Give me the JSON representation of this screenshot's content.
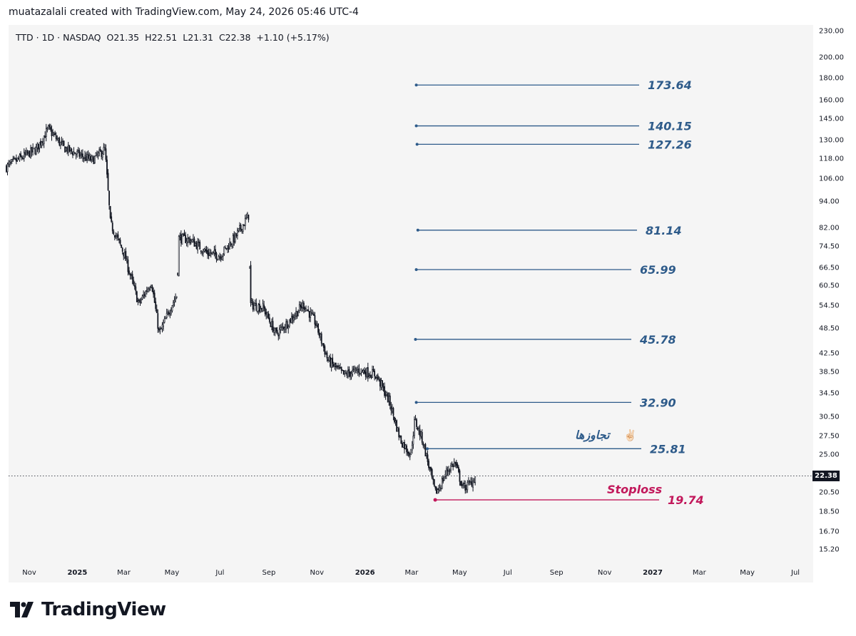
{
  "header": {
    "attribution": "muatazalali created with TradingView.com, May 24, 2026 05:46 UTC-4"
  },
  "legend": {
    "symbol": "TTD · 1D · NASDAQ",
    "open_label": "O",
    "open": "21.35",
    "high_label": "H",
    "high": "22.51",
    "low_label": "L",
    "low": "21.31",
    "close_label": "C",
    "close": "22.38",
    "change": "+1.10 (+5.17%)"
  },
  "current_price_badge": "22.38",
  "footer": {
    "brand": "TradingView"
  },
  "colors": {
    "level": "#2e5b8a",
    "stoploss": "#c2185b",
    "candle": "#131722",
    "panel": "#f5f5f5"
  },
  "chart_data": {
    "type": "candlestick",
    "scale": "log",
    "ylim": [
      14.5,
      232
    ],
    "y_ticks": [
      "230.00",
      "200.00",
      "180.00",
      "160.00",
      "145.00",
      "130.00",
      "118.00",
      "106.00",
      "94.00",
      "82.00",
      "74.50",
      "66.50",
      "60.50",
      "54.50",
      "48.50",
      "42.50",
      "38.50",
      "34.50",
      "30.50",
      "27.50",
      "25.00",
      "20.50",
      "18.50",
      "16.70",
      "15.20"
    ],
    "x_ticks": [
      {
        "label": "Nov",
        "bold": false
      },
      {
        "label": "2025",
        "bold": true
      },
      {
        "label": "Mar",
        "bold": false
      },
      {
        "label": "May",
        "bold": false
      },
      {
        "label": "Jul",
        "bold": false
      },
      {
        "label": "Sep",
        "bold": false
      },
      {
        "label": "Nov",
        "bold": false
      },
      {
        "label": "2026",
        "bold": true
      },
      {
        "label": "Mar",
        "bold": false
      },
      {
        "label": "May",
        "bold": false
      },
      {
        "label": "Jul",
        "bold": false
      },
      {
        "label": "Sep",
        "bold": false
      },
      {
        "label": "Nov",
        "bold": false
      },
      {
        "label": "2027",
        "bold": true
      },
      {
        "label": "Mar",
        "bold": false
      },
      {
        "label": "May",
        "bold": false
      },
      {
        "label": "Jul",
        "bold": false
      }
    ],
    "price_path": [
      [
        "2024-10-03",
        113
      ],
      [
        "2024-10-20",
        118
      ],
      [
        "2024-11-10",
        124
      ],
      [
        "2024-11-25",
        138
      ],
      [
        "2024-12-15",
        125
      ],
      [
        "2025-01-05",
        120
      ],
      [
        "2025-01-20",
        117
      ],
      [
        "2025-02-05",
        124
      ],
      [
        "2025-02-12",
        84
      ],
      [
        "2025-03-01",
        72
      ],
      [
        "2025-03-20",
        55
      ],
      [
        "2025-04-05",
        62
      ],
      [
        "2025-04-15",
        47
      ],
      [
        "2025-05-01",
        55
      ],
      [
        "2025-05-08",
        58
      ],
      [
        "2025-05-09",
        78
      ],
      [
        "2025-05-25",
        77
      ],
      [
        "2025-06-15",
        72
      ],
      [
        "2025-07-01",
        71
      ],
      [
        "2025-07-20",
        78
      ],
      [
        "2025-08-07",
        88
      ],
      [
        "2025-08-08",
        55
      ],
      [
        "2025-08-25",
        54
      ],
      [
        "2025-09-10",
        47
      ],
      [
        "2025-09-25",
        50
      ],
      [
        "2025-10-15",
        55
      ],
      [
        "2025-10-30",
        50
      ],
      [
        "2025-11-15",
        41
      ],
      [
        "2025-12-05",
        38
      ],
      [
        "2025-12-25",
        39
      ],
      [
        "2026-01-15",
        38
      ],
      [
        "2026-02-01",
        33
      ],
      [
        "2026-02-15",
        27
      ],
      [
        "2026-02-28",
        25
      ],
      [
        "2026-03-05",
        30
      ],
      [
        "2026-03-15",
        27
      ],
      [
        "2026-03-31",
        20.5
      ],
      [
        "2026-04-05",
        21
      ],
      [
        "2026-04-15",
        23
      ],
      [
        "2026-04-25",
        24
      ],
      [
        "2026-05-05",
        21
      ],
      [
        "2026-05-15",
        21.5
      ],
      [
        "2026-05-22",
        22.38
      ]
    ],
    "levels": [
      {
        "value": "173.64",
        "start": "2026-03-07"
      },
      {
        "value": "140.15",
        "start": "2026-03-07"
      },
      {
        "value": "127.26",
        "start": "2026-03-08"
      },
      {
        "value": "81.14",
        "start": "2026-03-09"
      },
      {
        "value": "65.99",
        "start": "2026-03-07"
      },
      {
        "value": "45.78",
        "start": "2026-03-06"
      },
      {
        "value": "32.90",
        "start": "2026-03-07"
      },
      {
        "value": "25.81",
        "start": "2026-03-21"
      }
    ],
    "annotation": {
      "text": "تجاوزها",
      "emoji": "✌🏻",
      "value": "25.81"
    },
    "stoploss": {
      "label": "Stoploss",
      "value": "19.74",
      "start": "2026-03-31"
    },
    "current_price": "22.38"
  }
}
